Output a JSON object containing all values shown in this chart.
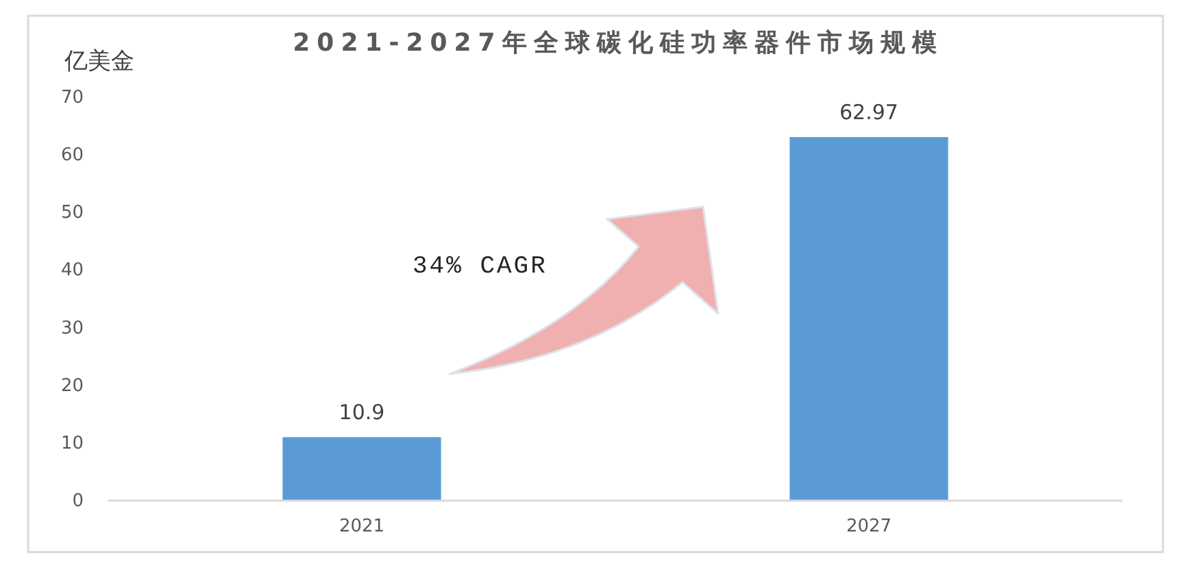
{
  "chart_data": {
    "type": "bar",
    "title": "2021-2027年全球碳化硅功率器件市场规模",
    "ylabel": "亿美金",
    "categories": [
      "2021",
      "2027"
    ],
    "values": [
      10.9,
      62.97
    ],
    "color": "#5b9bd5",
    "ylim": [
      0,
      70
    ],
    "yticks": [
      0,
      10,
      20,
      30,
      40,
      50,
      60,
      70
    ],
    "data_labels": true,
    "annotations": [
      "34% CAGR"
    ]
  }
}
